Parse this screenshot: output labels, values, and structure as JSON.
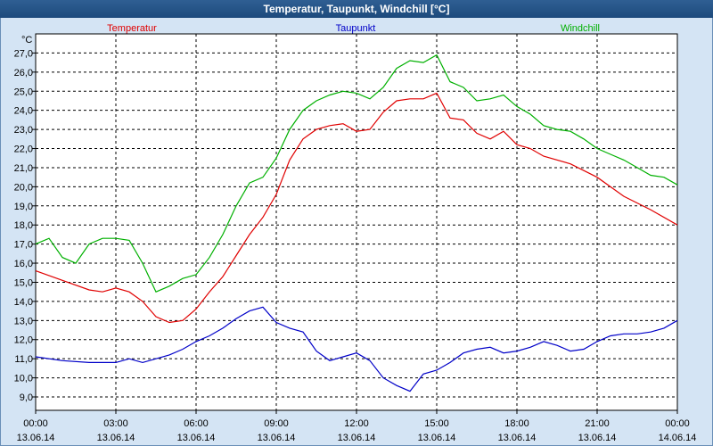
{
  "window": {
    "title": "Temperatur, Taupunkt, Windchill [°C]"
  },
  "colors": {
    "temperatur": "#e00000",
    "taupunkt": "#0000c8",
    "windchill": "#00b000"
  },
  "chart_data": {
    "type": "line",
    "title": "Temperatur, Taupunkt, Windchill [°C]",
    "ylabel": "°C",
    "ylim": [
      8.3,
      28.0
    ],
    "xlim": [
      0,
      24
    ],
    "grid": true,
    "legend": "top",
    "yticks": [
      "27,0",
      "26,0",
      "25,0",
      "24,0",
      "23,0",
      "22,0",
      "21,0",
      "20,0",
      "19,0",
      "18,0",
      "17,0",
      "16,0",
      "15,0",
      "14,0",
      "13,0",
      "12,0",
      "11,0",
      "10,0",
      "9,0"
    ],
    "xticks": [
      {
        "time": "00:00",
        "date": "13.06.14"
      },
      {
        "time": "03:00",
        "date": "13.06.14"
      },
      {
        "time": "06:00",
        "date": "13.06.14"
      },
      {
        "time": "09:00",
        "date": "13.06.14"
      },
      {
        "time": "12:00",
        "date": "13.06.14"
      },
      {
        "time": "15:00",
        "date": "13.06.14"
      },
      {
        "time": "18:00",
        "date": "13.06.14"
      },
      {
        "time": "21:00",
        "date": "13.06.14"
      },
      {
        "time": "00:00",
        "date": "14.06.14"
      }
    ],
    "series": [
      {
        "name": "Temperatur",
        "x": [
          0,
          1,
          2,
          2.5,
          3,
          3.5,
          4,
          4.5,
          5,
          5.5,
          6,
          6.5,
          7,
          7.5,
          8,
          8.5,
          9,
          9.5,
          10,
          10.5,
          11,
          11.5,
          12,
          12.5,
          13,
          13.5,
          14,
          14.5,
          15,
          15.5,
          16,
          16.5,
          17,
          17.5,
          18,
          18.5,
          19,
          20,
          21,
          22,
          23,
          24
        ],
        "y": [
          15.6,
          15.1,
          14.6,
          14.5,
          14.7,
          14.5,
          14.0,
          13.2,
          12.9,
          13.0,
          13.6,
          14.5,
          15.3,
          16.4,
          17.5,
          18.4,
          19.6,
          21.4,
          22.5,
          23.0,
          23.2,
          23.3,
          22.9,
          23.0,
          23.9,
          24.5,
          24.6,
          24.6,
          24.9,
          23.6,
          23.5,
          22.8,
          22.5,
          22.9,
          22.2,
          22.0,
          21.6,
          21.2,
          20.5,
          19.5,
          18.8,
          18.0
        ]
      },
      {
        "name": "Taupunkt",
        "x": [
          0,
          1,
          2,
          3,
          3.5,
          4,
          4.5,
          5,
          5.5,
          6,
          6.5,
          7,
          7.5,
          8,
          8.5,
          9,
          9.5,
          10,
          10.5,
          11,
          11.5,
          12,
          12.5,
          13,
          13.5,
          14,
          14.5,
          15,
          15.5,
          16,
          16.5,
          17,
          17.5,
          18,
          18.5,
          19,
          19.5,
          20,
          20.5,
          21,
          21.5,
          22,
          22.5,
          23,
          23.5,
          24
        ],
        "y": [
          11.1,
          10.9,
          10.8,
          10.8,
          11.0,
          10.8,
          11.0,
          11.2,
          11.5,
          11.9,
          12.2,
          12.6,
          13.1,
          13.5,
          13.7,
          12.9,
          12.6,
          12.4,
          11.4,
          10.9,
          11.1,
          11.3,
          10.9,
          10.0,
          9.6,
          9.3,
          10.2,
          10.4,
          10.8,
          11.3,
          11.5,
          11.6,
          11.3,
          11.4,
          11.6,
          11.9,
          11.7,
          11.4,
          11.5,
          11.9,
          12.2,
          12.3,
          12.3,
          12.4,
          12.6,
          13.0
        ]
      },
      {
        "name": "Windchill",
        "x": [
          0,
          0.5,
          1,
          1.5,
          2,
          2.5,
          3,
          3.5,
          4,
          4.5,
          5,
          5.5,
          6,
          6.5,
          7,
          7.5,
          8,
          8.5,
          9,
          9.5,
          10,
          10.5,
          11,
          11.5,
          12,
          12.5,
          13,
          13.5,
          14,
          14.5,
          15,
          15.5,
          16,
          16.5,
          17,
          17.5,
          18,
          18.5,
          19,
          19.5,
          20,
          20.5,
          21,
          21.5,
          22,
          22.5,
          23,
          23.5,
          24
        ],
        "y": [
          17.0,
          17.3,
          16.3,
          16.0,
          17.0,
          17.3,
          17.3,
          17.2,
          16.0,
          14.5,
          14.8,
          15.2,
          15.4,
          16.3,
          17.5,
          19.0,
          20.2,
          20.5,
          21.5,
          23.0,
          24.0,
          24.5,
          24.8,
          25.0,
          24.9,
          24.6,
          25.2,
          26.2,
          26.6,
          26.5,
          26.9,
          25.5,
          25.2,
          24.5,
          24.6,
          24.8,
          24.2,
          23.8,
          23.2,
          23.0,
          22.9,
          22.5,
          22.0,
          21.7,
          21.4,
          21.0,
          20.6,
          20.5,
          20.1
        ]
      }
    ]
  }
}
